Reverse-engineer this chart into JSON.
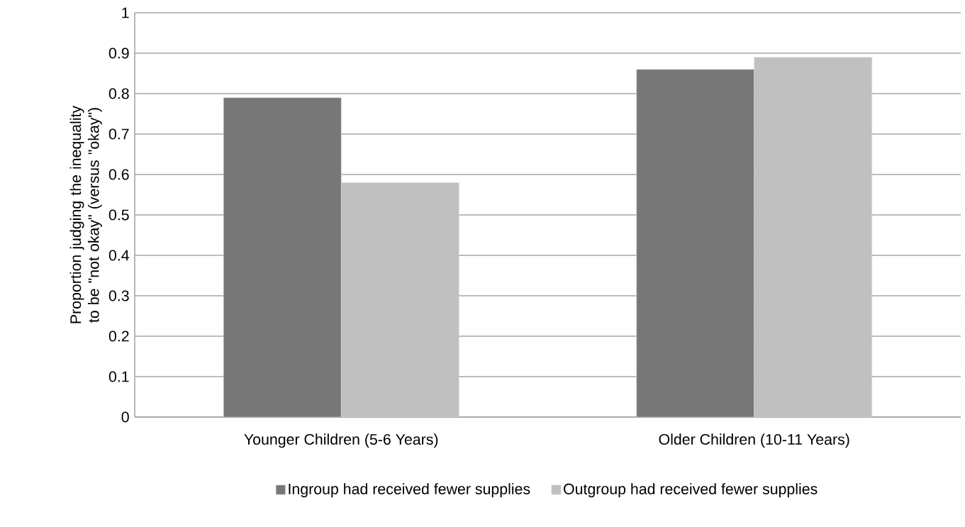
{
  "chart_data": {
    "type": "bar",
    "ylabel": "Proportion judging the inequality to be \"not okay\" (versus \"okay\")",
    "categories": [
      "Younger Children (5-6 Years)",
      "Older Children (10-11 Years)"
    ],
    "series": [
      {
        "name": "Ingroup had received fewer supplies",
        "color": "#777777",
        "values": [
          0.79,
          0.86
        ]
      },
      {
        "name": "Outgroup had received fewer supplies",
        "color": "#c0c0c0",
        "values": [
          0.58,
          0.89
        ]
      }
    ],
    "ylim": [
      0,
      1
    ],
    "yticks": [
      0,
      0.1,
      0.2,
      0.3,
      0.4,
      0.5,
      0.6,
      0.7,
      0.8,
      0.9,
      1
    ],
    "grid": "y",
    "legend": "bottom"
  }
}
